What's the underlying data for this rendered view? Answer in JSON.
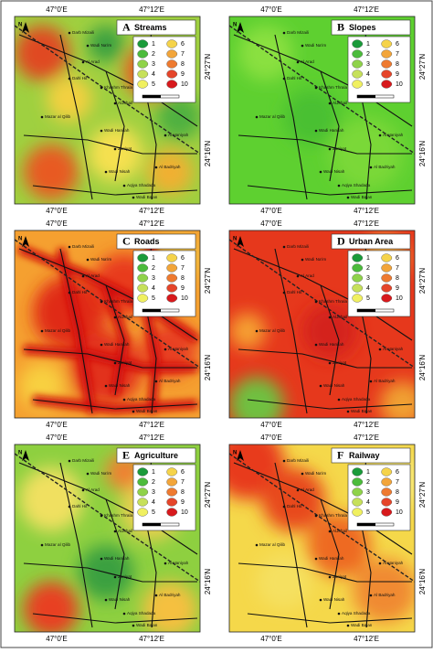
{
  "panels": [
    {
      "letter": "A",
      "title": "Streams"
    },
    {
      "letter": "B",
      "title": "Slopes"
    },
    {
      "letter": "C",
      "title": "Roads"
    },
    {
      "letter": "D",
      "title": "Urban Area"
    },
    {
      "letter": "E",
      "title": "Agriculture"
    },
    {
      "letter": "F",
      "title": "Railway"
    }
  ],
  "legend_classes": [
    "1",
    "2",
    "3",
    "4",
    "5",
    "6",
    "7",
    "8",
    "9",
    "10"
  ],
  "longitude_labels": [
    "47°0'E",
    "47°12'E"
  ],
  "latitude_labels": [
    "24°27'N",
    "24°16'N"
  ],
  "north": "N",
  "places": [
    "Darb Mizaili",
    "Wadi Na'im",
    "Al Arad",
    "Dahl Hit",
    "Khashm Thrala Bila",
    "AlJubail",
    "Mazar al Qilib",
    "Wadi Hanifah",
    "Al Haniyah",
    "Zoniyat",
    "Wadi Nisah",
    "Al Badriyah",
    "Aqiya Shadada",
    "Wadi Bajan"
  ]
}
